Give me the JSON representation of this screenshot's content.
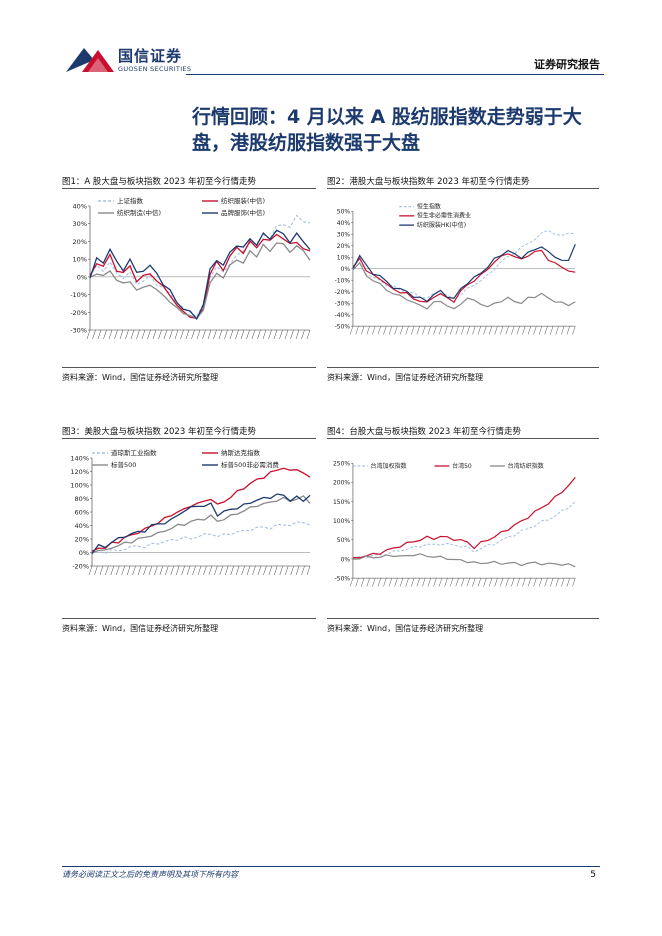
{
  "header": {
    "logo_cn": "国信证券",
    "logo_en": "GUOSEN SECURITIES",
    "report_type": "证券研究报告",
    "brand_color": "#1d3a6e",
    "accent_color": "#c8102e"
  },
  "section_title": "行情回顾：4 月以来 A 股纺服指数走势弱于大盘，港股纺服指数强于大盘",
  "figures": [
    {
      "caption": "图1：A 股大盘与板块指数 2023 年初至今行情走势",
      "source": "资料来源：Wind，国信证券经济研究所整理"
    },
    {
      "caption": "图2：港股大盘与板块指数年 2023 年初至今行情走势",
      "source": "资料来源：Wind，国信证券经济研究所整理"
    },
    {
      "caption": "图3：美股大盘与板块指数 2023 年初至今行情走势",
      "source": "资料来源：Wind，国信证券经济研究所整理"
    },
    {
      "caption": "图4：台股大盘与板块指数 2023 年初至今行情走势",
      "source": "资料来源：Wind，国信证券经济研究所整理"
    }
  ],
  "chart_data": [
    {
      "type": "line",
      "ylim": [
        -30,
        40
      ],
      "yticks": [
        "40%",
        "30%",
        "20%",
        "10%",
        "0%",
        "-10%",
        "-20%",
        "-30%"
      ],
      "legend": [
        "上证指数",
        "纺织服装(中信)",
        "纺织制造(中信)",
        "品牌服饰(中信)"
      ],
      "series": [
        {
          "name": "上证指数",
          "color": "#a8bfe0",
          "dash": true,
          "values": [
            0,
            6,
            4,
            8,
            2,
            0,
            2,
            -4,
            -2,
            0,
            -4,
            -6,
            -10,
            -14,
            -18,
            -20,
            -22,
            -16,
            0,
            6,
            2,
            8,
            12,
            14,
            20,
            18,
            24,
            22,
            28,
            30,
            28,
            34,
            32,
            30
          ]
        },
        {
          "name": "纺织服装(中信)",
          "color": "#c8102e",
          "dash": false,
          "values": [
            0,
            8,
            6,
            12,
            4,
            2,
            6,
            -2,
            0,
            2,
            -2,
            -6,
            -10,
            -16,
            -20,
            -22,
            -24,
            -18,
            2,
            8,
            4,
            12,
            16,
            14,
            20,
            16,
            22,
            20,
            24,
            22,
            18,
            20,
            16,
            14
          ]
        },
        {
          "name": "纺织制造(中信)",
          "color": "#8a8a8a",
          "dash": false,
          "values": [
            0,
            2,
            0,
            4,
            -2,
            -4,
            -2,
            -8,
            -6,
            -4,
            -8,
            -10,
            -14,
            -18,
            -20,
            -22,
            -24,
            -18,
            -4,
            2,
            0,
            6,
            10,
            8,
            14,
            12,
            18,
            14,
            20,
            18,
            14,
            18,
            14,
            10
          ]
        },
        {
          "name": "品牌服饰(中信)",
          "color": "#1d3a6e",
          "dash": false,
          "values": [
            0,
            10,
            8,
            16,
            8,
            4,
            10,
            2,
            4,
            6,
            2,
            -4,
            -8,
            -14,
            -18,
            -20,
            -23,
            -16,
            4,
            10,
            6,
            14,
            18,
            16,
            22,
            18,
            24,
            22,
            26,
            24,
            20,
            24,
            20,
            16
          ]
        }
      ]
    },
    {
      "type": "line",
      "ylim": [
        -50,
        50
      ],
      "yticks": [
        "50%",
        "40%",
        "30%",
        "20%",
        "10%",
        "0%",
        "-10%",
        "-20%",
        "-30%",
        "-40%",
        "-50%"
      ],
      "legend": [
        "恒生指数",
        "恒生非必需性消费业",
        "纺织服装HK(中信)"
      ],
      "series": [
        {
          "name": "恒生指数",
          "color": "#a8bfe0",
          "dash": true,
          "values": [
            0,
            8,
            -4,
            -8,
            -10,
            -14,
            -16,
            -18,
            -20,
            -22,
            -24,
            -26,
            -22,
            -20,
            -24,
            -26,
            -22,
            -18,
            -14,
            -10,
            -6,
            0,
            6,
            10,
            14,
            18,
            22,
            26,
            30,
            34,
            30,
            28,
            32,
            30
          ]
        },
        {
          "name": "恒生非必需性消费业",
          "color": "#c8102e",
          "dash": false,
          "values": [
            0,
            10,
            -2,
            -6,
            -8,
            -14,
            -18,
            -20,
            -22,
            -26,
            -28,
            -30,
            -24,
            -22,
            -26,
            -28,
            -20,
            -14,
            -10,
            -6,
            0,
            6,
            10,
            14,
            10,
            8,
            12,
            14,
            16,
            8,
            4,
            2,
            -2,
            -4
          ]
        },
        {
          "name": "纺织服装HK(中信)",
          "color": "#1d3a6e",
          "dash": false,
          "values": [
            0,
            12,
            2,
            -4,
            -6,
            -12,
            -16,
            -18,
            -20,
            -24,
            -26,
            -28,
            -22,
            -20,
            -24,
            -26,
            -18,
            -12,
            -8,
            -4,
            2,
            8,
            12,
            16,
            12,
            10,
            14,
            16,
            20,
            14,
            10,
            8,
            6,
            22
          ]
        },
        {
          "name": "other",
          "color": "#8a8a8a",
          "dash": false,
          "values": [
            0,
            4,
            -6,
            -10,
            -14,
            -18,
            -22,
            -24,
            -26,
            -30,
            -32,
            -34,
            -30,
            -28,
            -32,
            -36,
            -30,
            -26,
            -28,
            -30,
            -34,
            -30,
            -28,
            -26,
            -28,
            -30,
            -26,
            -24,
            -22,
            -26,
            -28,
            -30,
            -32,
            -28
          ]
        }
      ]
    },
    {
      "type": "line",
      "ylim": [
        -20,
        140
      ],
      "yticks": [
        "140%",
        "120%",
        "100%",
        "80%",
        "60%",
        "40%",
        "20%",
        "0%",
        "-20%"
      ],
      "legend": [
        "道琼斯工业指数",
        "纳斯达克指数",
        "标普500",
        "标普500非必需消费"
      ],
      "series": [
        {
          "name": "道琼斯工业指数",
          "color": "#a8bfe0",
          "dash": true,
          "values": [
            0,
            2,
            0,
            4,
            2,
            6,
            8,
            10,
            8,
            12,
            14,
            16,
            18,
            20,
            22,
            20,
            24,
            26,
            28,
            24,
            26,
            28,
            30,
            32,
            34,
            36,
            38,
            36,
            40,
            42,
            40,
            44,
            46,
            40
          ]
        },
        {
          "name": "纳斯达克指数",
          "color": "#c8102e",
          "dash": false,
          "values": [
            0,
            8,
            6,
            14,
            16,
            22,
            26,
            30,
            34,
            40,
            44,
            50,
            56,
            60,
            64,
            70,
            72,
            76,
            80,
            70,
            76,
            82,
            90,
            96,
            102,
            108,
            112,
            118,
            122,
            126,
            120,
            124,
            118,
            110
          ]
        },
        {
          "name": "标普500",
          "color": "#8a8a8a",
          "dash": false,
          "values": [
            0,
            4,
            2,
            8,
            10,
            14,
            16,
            20,
            22,
            26,
            28,
            32,
            36,
            40,
            42,
            46,
            48,
            50,
            54,
            46,
            50,
            54,
            58,
            62,
            66,
            70,
            72,
            74,
            78,
            80,
            76,
            80,
            82,
            74
          ]
        },
        {
          "name": "标普500非必需消费",
          "color": "#1d3a6e",
          "dash": false,
          "values": [
            0,
            10,
            8,
            16,
            20,
            24,
            28,
            30,
            32,
            40,
            42,
            44,
            48,
            56,
            62,
            66,
            70,
            68,
            72,
            56,
            60,
            64,
            66,
            70,
            74,
            78,
            80,
            82,
            86,
            84,
            78,
            82,
            76,
            86
          ]
        }
      ]
    },
    {
      "type": "line",
      "ylim": [
        -50,
        250
      ],
      "yticks": [
        "250%",
        "200%",
        "150%",
        "100%",
        "50%",
        "0%",
        "-50%"
      ],
      "legend": [
        "台湾加权指数",
        "台湾50",
        "台湾纺织指数"
      ],
      "series": [
        {
          "name": "台湾加权指数",
          "color": "#a8bfe0",
          "dash": true,
          "values": [
            0,
            4,
            6,
            8,
            10,
            14,
            18,
            22,
            26,
            30,
            34,
            38,
            36,
            40,
            38,
            36,
            34,
            30,
            20,
            28,
            34,
            40,
            48,
            56,
            64,
            72,
            80,
            88,
            96,
            104,
            112,
            124,
            136,
            148
          ]
        },
        {
          "name": "台湾50",
          "color": "#c8102e",
          "dash": false,
          "values": [
            0,
            6,
            8,
            12,
            16,
            22,
            28,
            34,
            40,
            46,
            50,
            56,
            54,
            58,
            56,
            52,
            48,
            44,
            30,
            42,
            50,
            58,
            68,
            78,
            88,
            98,
            110,
            122,
            134,
            146,
            160,
            176,
            192,
            210
          ]
        },
        {
          "name": "台湾纺织指数",
          "color": "#8a8a8a",
          "dash": false,
          "values": [
            0,
            2,
            4,
            6,
            4,
            8,
            10,
            6,
            8,
            12,
            10,
            8,
            6,
            4,
            2,
            -2,
            -4,
            -6,
            -10,
            -12,
            -8,
            -10,
            -12,
            -10,
            -12,
            -14,
            -12,
            -10,
            -12,
            -14,
            -12,
            -14,
            -16,
            -18
          ]
        }
      ]
    }
  ],
  "footer": {
    "note": "请务必阅读正文之后的免责声明及其项下所有内容",
    "page_number": "5"
  }
}
